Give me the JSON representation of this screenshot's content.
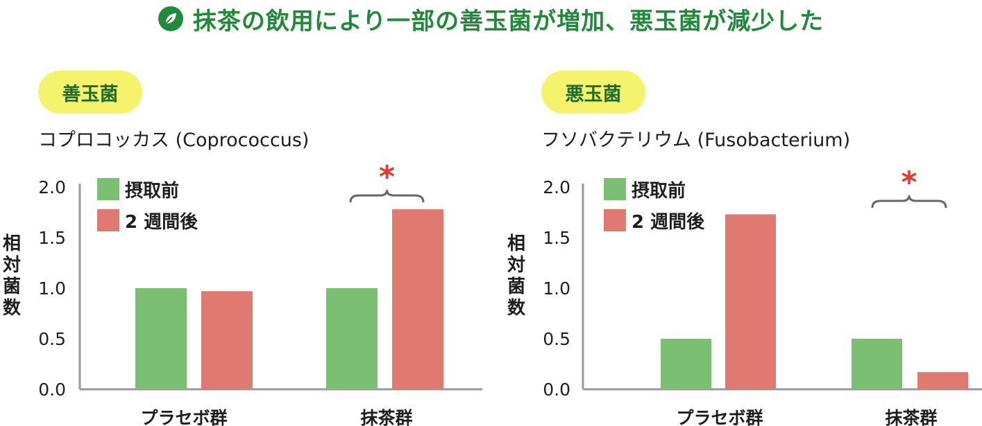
{
  "header": {
    "title": "抹茶の飲用により一部の善玉菌が増加、悪玉菌が減少した",
    "icon": "leaf-icon"
  },
  "colors": {
    "before": "#7abf72",
    "after": "#e07a70",
    "title": "#1f8a3a",
    "badge": "#f5f36b",
    "star": "#e8382c"
  },
  "chart_data": [
    {
      "type": "bar",
      "badge": "善玉菌",
      "title": "コプロコッカス (Coprococcus)",
      "ylabel": "相対菌数",
      "ylim": [
        0,
        2.0
      ],
      "yticks": [
        "2.0",
        "1.5",
        "1.0",
        "0.5",
        "0.0"
      ],
      "categories": [
        "プラセボ群",
        "抹茶群"
      ],
      "series": [
        {
          "name": "摂取前",
          "values": [
            1.0,
            1.0
          ]
        },
        {
          "name": "2 週間後",
          "values": [
            0.97,
            1.78
          ]
        }
      ],
      "annotations": [
        {
          "category": "抹茶群",
          "text": "*"
        }
      ]
    },
    {
      "type": "bar",
      "badge": "悪玉菌",
      "title": "フソバクテリウム (Fusobacterium)",
      "ylabel": "相対菌数",
      "ylim": [
        0,
        2.0
      ],
      "yticks": [
        "2.0",
        "1.5",
        "1.0",
        "0.5",
        "0.0"
      ],
      "categories": [
        "プラセボ群",
        "抹茶群"
      ],
      "series": [
        {
          "name": "摂取前",
          "values": [
            0.5,
            0.5
          ]
        },
        {
          "name": "2 週間後",
          "values": [
            1.73,
            0.17
          ]
        }
      ],
      "annotations": [
        {
          "category": "抹茶群",
          "text": "*"
        }
      ]
    }
  ]
}
